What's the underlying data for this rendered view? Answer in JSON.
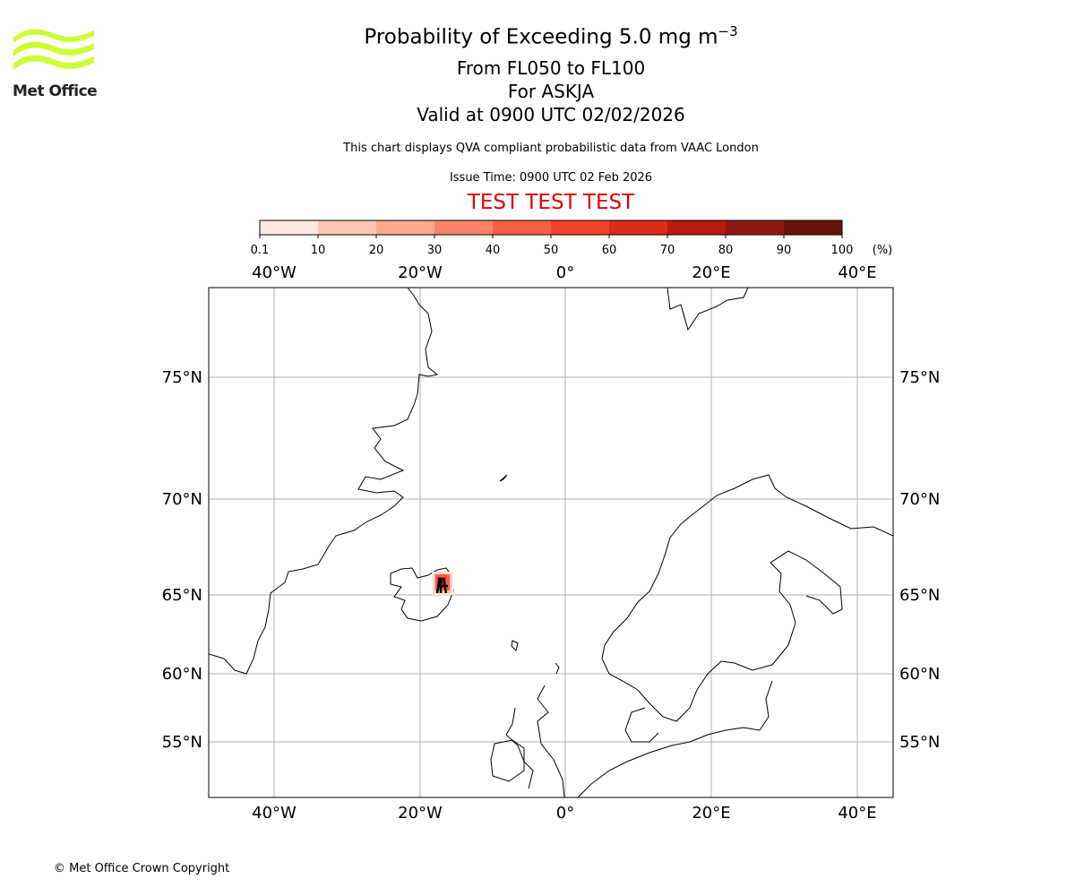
{
  "logo": {
    "text": "Met Office",
    "color": "#ccff33"
  },
  "title": {
    "line1_prefix": "Probability of Exceeding 5.0 mg m",
    "line1_sup": "−3",
    "line2": "From FL050 to FL100",
    "line3": "For ASKJA",
    "line4": "Valid at 0900 UTC 02/02/2026",
    "subtitle": "This chart displays QVA compliant probabilistic data from VAAC London",
    "issue_time": "Issue Time: 0900 UTC 02 Feb 2026",
    "test_banner": "TEST TEST TEST",
    "test_color": "#e00000"
  },
  "colorbar": {
    "unit": "(%)",
    "ticks": [
      "0.1",
      "10",
      "20",
      "30",
      "40",
      "50",
      "60",
      "70",
      "80",
      "90",
      "100"
    ],
    "colors": [
      "#fee9e1",
      "#fdc6b2",
      "#fca68c",
      "#fc8466",
      "#fb5e40",
      "#f2422a",
      "#dc2b18",
      "#bd1a0f",
      "#911810",
      "#671307"
    ]
  },
  "map": {
    "lon_labels": [
      "40°W",
      "20°W",
      "0°",
      "20°E",
      "40°E"
    ],
    "lat_labels": [
      "75°N",
      "70°N",
      "65°N",
      "60°N",
      "55°N"
    ],
    "volcano": "ASKJA"
  },
  "footer": {
    "copyright": "© Met Office Crown Copyright"
  }
}
